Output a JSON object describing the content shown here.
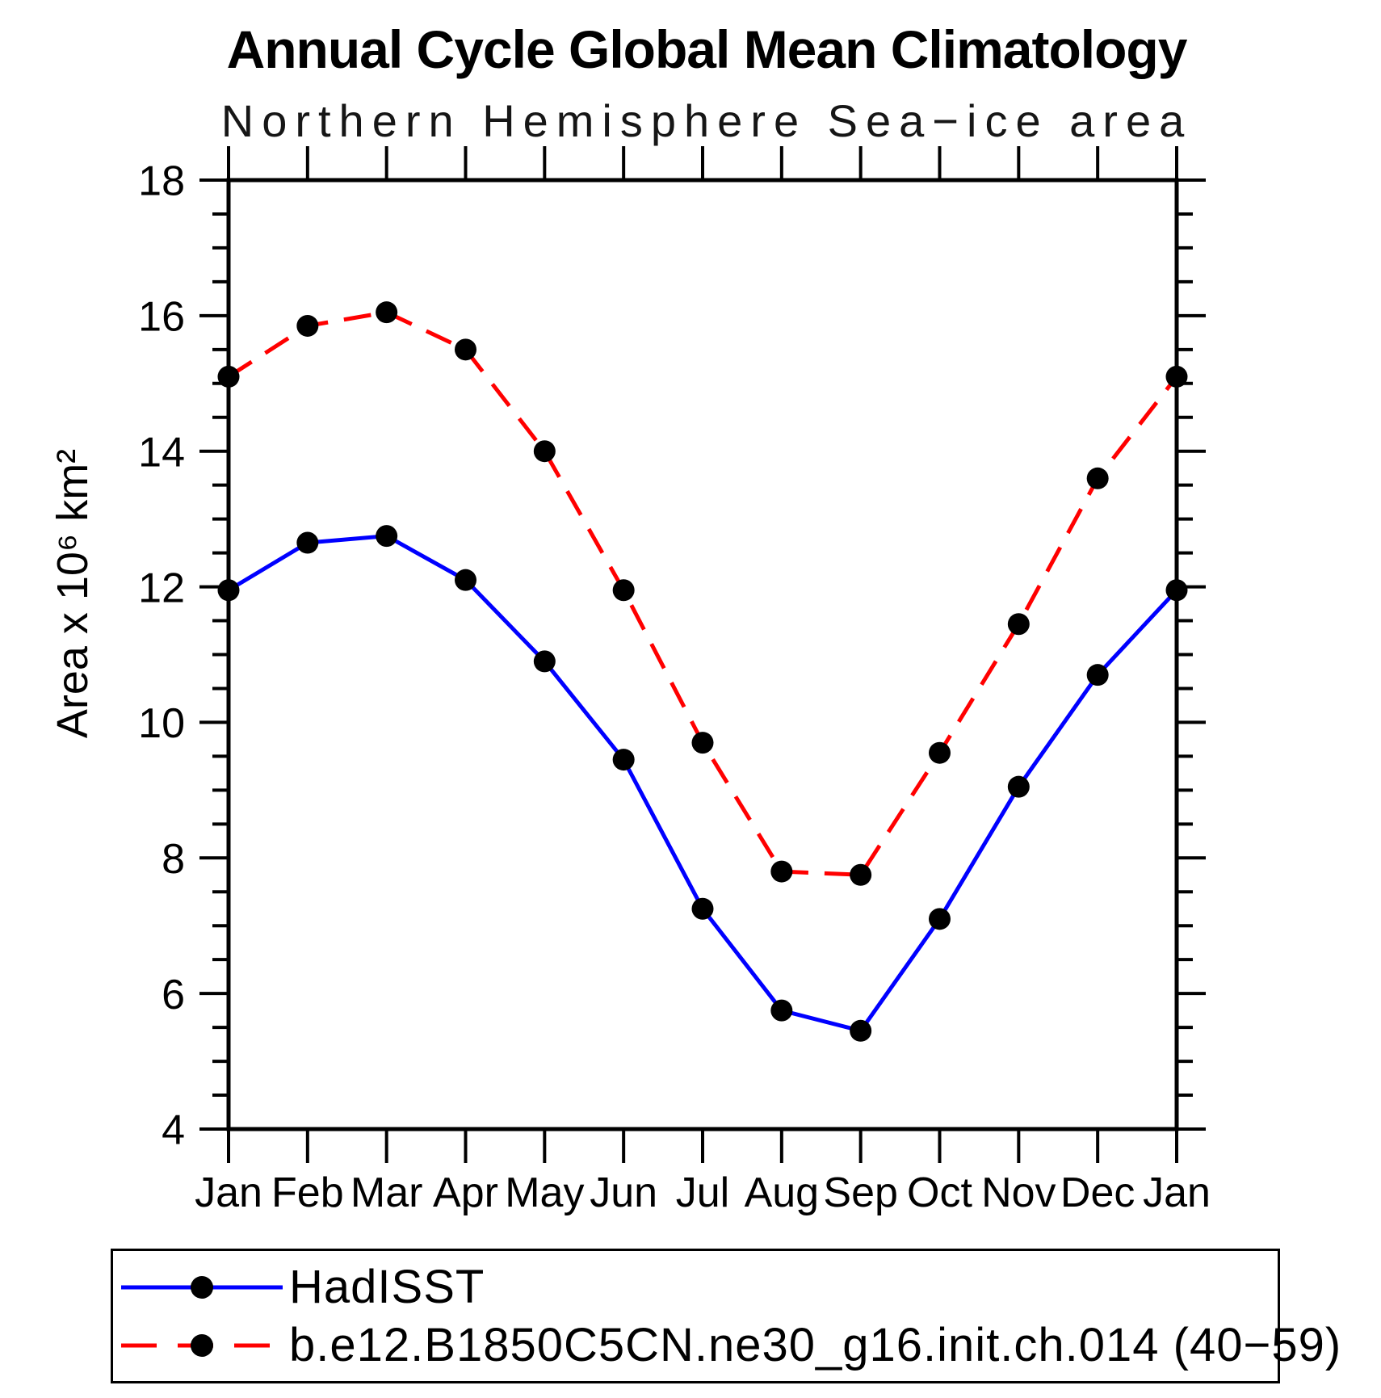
{
  "page": {
    "background": "#ffffff"
  },
  "chart_data": {
    "type": "line",
    "title": "Annual Cycle Global Mean Climatology",
    "subtitle": "Northern Hemisphere Sea−ice area",
    "ylabel": "Area x 10⁶ km²",
    "xlabel": "",
    "categories": [
      "Jan",
      "Feb",
      "Mar",
      "Apr",
      "May",
      "Jun",
      "Jul",
      "Aug",
      "Sep",
      "Oct",
      "Nov",
      "Dec",
      "Jan"
    ],
    "ylim": [
      4,
      18
    ],
    "y_major_step": 2,
    "y_minor_step": 0.5,
    "y_major_tick_labels": [
      "4",
      "6",
      "8",
      "10",
      "12",
      "14",
      "16",
      "18"
    ],
    "grid": false,
    "legend_position": "bottom-left-box",
    "axis_color": "#000000",
    "series": [
      {
        "name": "HadISST",
        "color": "#0000ff",
        "line_style": "solid",
        "marker": "filled-circle",
        "marker_color": "#000000",
        "values": [
          11.95,
          12.65,
          12.75,
          12.1,
          10.9,
          9.45,
          7.25,
          5.75,
          5.45,
          7.1,
          9.05,
          10.7,
          11.95
        ]
      },
      {
        "name": "b.e12.B1850C5CN.ne30_g16.init.ch.014 (40−59)",
        "color": "#ff0000",
        "line_style": "dashed",
        "marker": "filled-circle",
        "marker_color": "#000000",
        "values": [
          15.1,
          15.85,
          16.05,
          15.5,
          14.0,
          11.95,
          9.7,
          7.8,
          7.75,
          9.55,
          11.45,
          13.6,
          15.1
        ]
      }
    ]
  }
}
